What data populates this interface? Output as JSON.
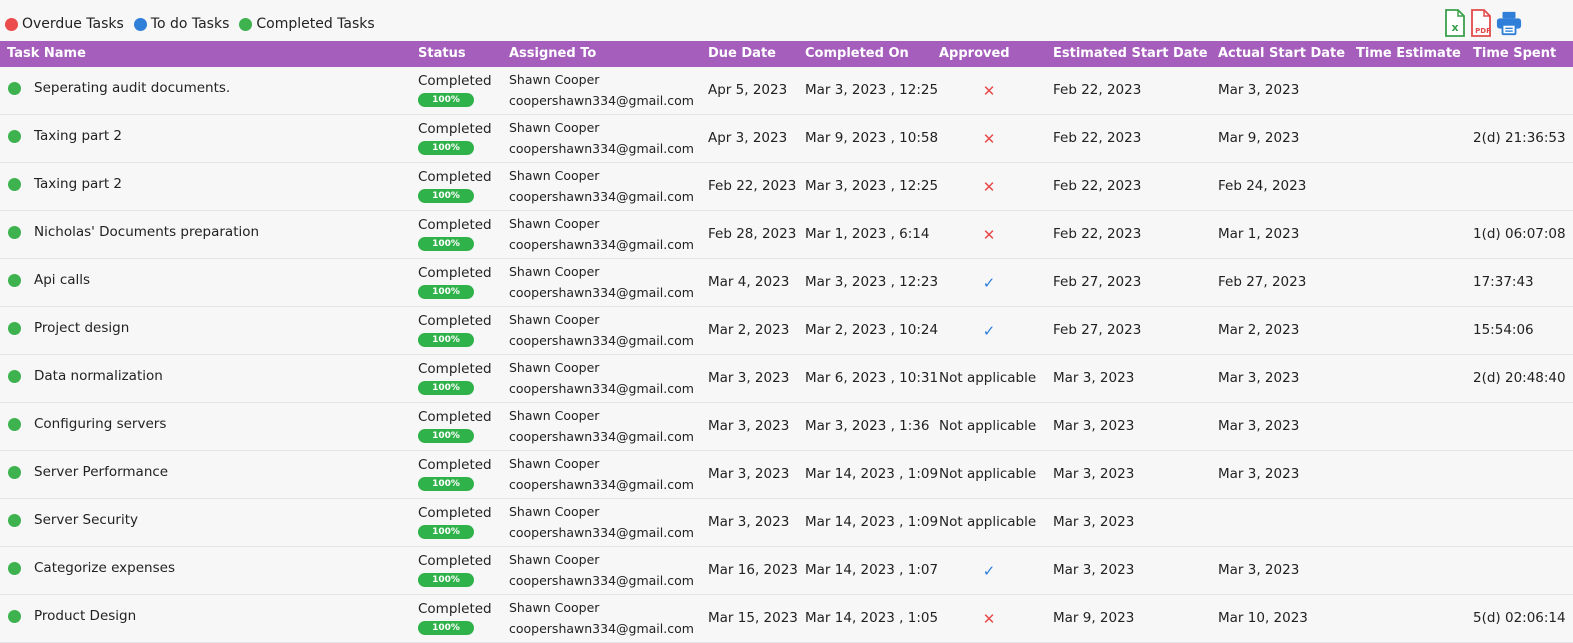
{
  "legend": [
    {
      "label": "Overdue Tasks",
      "color": "#ec4b4b"
    },
    {
      "label": "To do Tasks",
      "color": "#2f7fd8"
    },
    {
      "label": "Completed Tasks",
      "color": "#3db24f"
    }
  ],
  "toolbar": {
    "excel_icon": "excel-icon",
    "pdf_icon": "pdf-icon",
    "print_icon": "printer-icon",
    "pdf_text": "PDF"
  },
  "headers": {
    "task_name": "Task Name",
    "status": "Status",
    "assigned_to": "Assigned To",
    "due_date": "Due Date",
    "completed_on": "Completed On",
    "approved": "Approved",
    "estimated_start": "Estimated Start Date",
    "actual_start": "Actual Start Date",
    "time_estimate": "Time Estimate",
    "time_spent": "Time Spent"
  },
  "rows": [
    {
      "name": "Seperating audit documents.",
      "status": "Completed",
      "progress": "100%",
      "assignee": "Shawn Cooper",
      "email": "coopershawn334@gmail.com",
      "due": "Apr 5, 2023",
      "completed": "Mar 3, 2023 , 12:25",
      "approved": "x",
      "est_start": "Feb 22, 2023",
      "act_start": "Mar 3, 2023",
      "time_estimate": "",
      "time_spent": ""
    },
    {
      "name": "Taxing part 2",
      "status": "Completed",
      "progress": "100%",
      "assignee": "Shawn Cooper",
      "email": "coopershawn334@gmail.com",
      "due": "Apr 3, 2023",
      "completed": "Mar 9, 2023 , 10:58",
      "approved": "x",
      "est_start": "Feb 22, 2023",
      "act_start": "Mar 9, 2023",
      "time_estimate": "",
      "time_spent": "2(d) 21:36:53"
    },
    {
      "name": "Taxing part 2",
      "status": "Completed",
      "progress": "100%",
      "assignee": "Shawn Cooper",
      "email": "coopershawn334@gmail.com",
      "due": "Feb 22, 2023",
      "completed": "Mar 3, 2023 , 12:25",
      "approved": "x",
      "est_start": "Feb 22, 2023",
      "act_start": "Feb 24, 2023",
      "time_estimate": "",
      "time_spent": ""
    },
    {
      "name": "Nicholas' Documents preparation",
      "status": "Completed",
      "progress": "100%",
      "assignee": "Shawn Cooper",
      "email": "coopershawn334@gmail.com",
      "due": "Feb 28, 2023",
      "completed": "Mar 1, 2023 , 6:14",
      "approved": "x",
      "est_start": "Feb 22, 2023",
      "act_start": "Mar 1, 2023",
      "time_estimate": "",
      "time_spent": "1(d) 06:07:08"
    },
    {
      "name": "Api calls",
      "status": "Completed",
      "progress": "100%",
      "assignee": "Shawn Cooper",
      "email": "coopershawn334@gmail.com",
      "due": "Mar 4, 2023",
      "completed": "Mar 3, 2023 , 12:23",
      "approved": "check",
      "est_start": "Feb 27, 2023",
      "act_start": "Feb 27, 2023",
      "time_estimate": "",
      "time_spent": "17:37:43"
    },
    {
      "name": "Project design",
      "status": "Completed",
      "progress": "100%",
      "assignee": "Shawn Cooper",
      "email": "coopershawn334@gmail.com",
      "due": "Mar 2, 2023",
      "completed": "Mar 2, 2023 , 10:24",
      "approved": "check",
      "est_start": "Feb 27, 2023",
      "act_start": "Mar 2, 2023",
      "time_estimate": "",
      "time_spent": "15:54:06"
    },
    {
      "name": "Data normalization",
      "status": "Completed",
      "progress": "100%",
      "assignee": "Shawn Cooper",
      "email": "coopershawn334@gmail.com",
      "due": "Mar 3, 2023",
      "completed": "Mar 6, 2023 , 10:31",
      "approved": "Not applicable",
      "est_start": "Mar 3, 2023",
      "act_start": "Mar 3, 2023",
      "time_estimate": "",
      "time_spent": "2(d) 20:48:40"
    },
    {
      "name": "Configuring servers",
      "status": "Completed",
      "progress": "100%",
      "assignee": "Shawn Cooper",
      "email": "coopershawn334@gmail.com",
      "due": "Mar 3, 2023",
      "completed": "Mar 3, 2023 , 1:36",
      "approved": "Not applicable",
      "est_start": "Mar 3, 2023",
      "act_start": "Mar 3, 2023",
      "time_estimate": "",
      "time_spent": ""
    },
    {
      "name": "Server Performance",
      "status": "Completed",
      "progress": "100%",
      "assignee": "Shawn Cooper",
      "email": "coopershawn334@gmail.com",
      "due": "Mar 3, 2023",
      "completed": "Mar 14, 2023 , 1:09",
      "approved": "Not applicable",
      "est_start": "Mar 3, 2023",
      "act_start": "Mar 3, 2023",
      "time_estimate": "",
      "time_spent": ""
    },
    {
      "name": "Server Security",
      "status": "Completed",
      "progress": "100%",
      "assignee": "Shawn Cooper",
      "email": "coopershawn334@gmail.com",
      "due": "Mar 3, 2023",
      "completed": "Mar 14, 2023 , 1:09",
      "approved": "Not applicable",
      "est_start": "Mar 3, 2023",
      "act_start": "",
      "time_estimate": "",
      "time_spent": ""
    },
    {
      "name": "Categorize expenses",
      "status": "Completed",
      "progress": "100%",
      "assignee": "Shawn Cooper",
      "email": "coopershawn334@gmail.com",
      "due": "Mar 16, 2023",
      "completed": "Mar 14, 2023 , 1:07",
      "approved": "check",
      "est_start": "Mar 3, 2023",
      "act_start": "Mar 3, 2023",
      "time_estimate": "",
      "time_spent": ""
    },
    {
      "name": "Product Design",
      "status": "Completed",
      "progress": "100%",
      "assignee": "Shawn Cooper",
      "email": "coopershawn334@gmail.com",
      "due": "Mar 15, 2023",
      "completed": "Mar 14, 2023 , 1:05",
      "approved": "x",
      "est_start": "Mar 9, 2023",
      "act_start": "Mar 10, 2023",
      "time_estimate": "",
      "time_spent": "5(d) 02:06:14"
    }
  ]
}
